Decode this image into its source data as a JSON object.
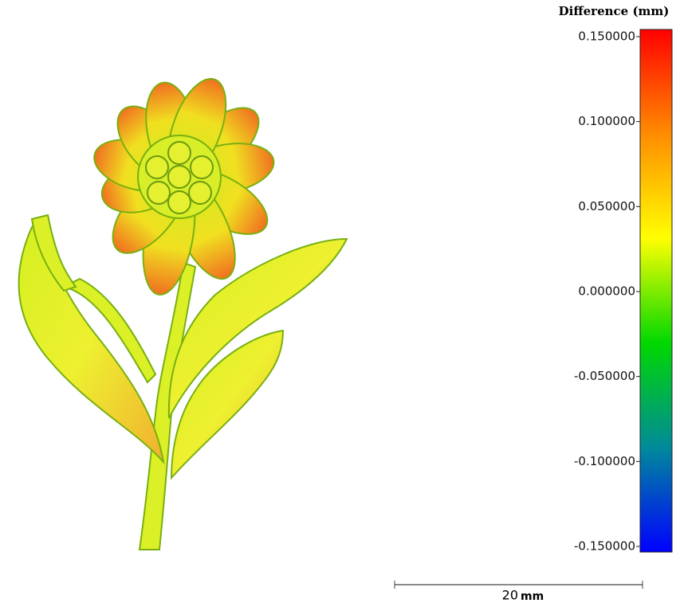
{
  "colorbar": {
    "title": "Difference (mm)",
    "range": [
      -0.15,
      0.15
    ],
    "colors": [
      "#0000ff",
      "#008a9a",
      "#00d800",
      "#ffff00",
      "#ff8c00",
      "#ff0000"
    ],
    "ticks": [
      {
        "value": 0.15,
        "label": "0.150000"
      },
      {
        "value": 0.1,
        "label": "0.100000"
      },
      {
        "value": 0.05,
        "label": "0.050000"
      },
      {
        "value": 0,
        "label": "0.000000"
      },
      {
        "value": -0.05,
        "label": "-0.050000"
      },
      {
        "value": -0.1,
        "label": "-0.100000"
      },
      {
        "value": -0.15,
        "label": "-0.150000"
      }
    ]
  },
  "scale_bar": {
    "length": "20",
    "unit": "mm"
  }
}
